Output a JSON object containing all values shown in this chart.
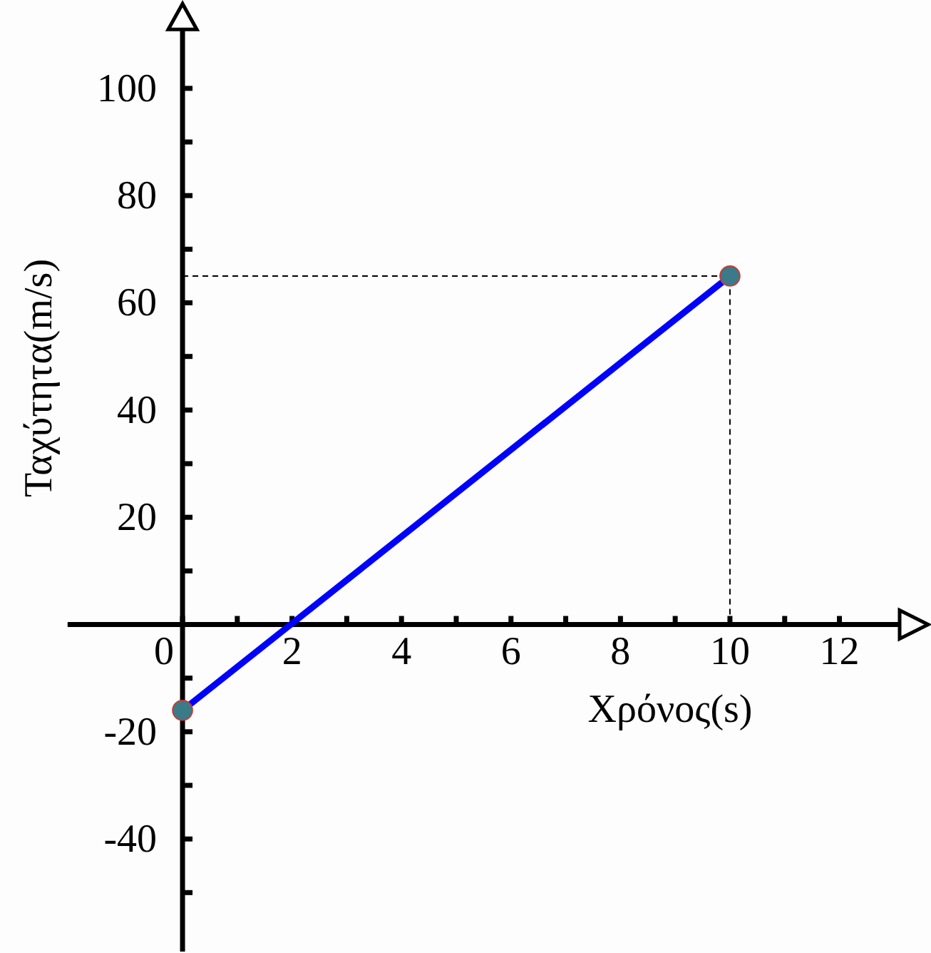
{
  "chart_data": {
    "type": "line",
    "xlabel": "Χρόνος(s)",
    "ylabel": "Ταχύτητα(m/s)",
    "x": [
      0,
      10
    ],
    "values": [
      -16,
      65
    ],
    "color": "#0000ff",
    "marker": "circle",
    "line_style": "solid",
    "xlim": [
      -2.1,
      13.1
    ],
    "ylim": [
      -61,
      111
    ],
    "xticks": [
      0,
      {
        "value": 1,
        "label": null
      },
      2,
      {
        "value": 3,
        "label": null
      },
      4,
      {
        "value": 5,
        "label": null
      },
      6,
      {
        "value": 7,
        "label": null
      },
      8,
      {
        "value": 9,
        "label": null
      },
      10,
      {
        "value": 11,
        "label": null
      },
      12
    ],
    "yticks": [
      {
        "value": -50,
        "label": null
      },
      -40,
      {
        "value": -30,
        "label": null
      },
      -20,
      {
        "value": -10,
        "label": null
      },
      {
        "value": 0,
        "label": null
      },
      {
        "value": 10,
        "label": null
      },
      20,
      {
        "value": 30,
        "label": null
      },
      40,
      {
        "value": 50,
        "label": null
      },
      60,
      {
        "value": 70,
        "label": null
      },
      80,
      {
        "value": 90,
        "label": null
      },
      100
    ],
    "ref_lines": [
      {
        "axis": "y",
        "value": 65,
        "line_style": "dashed"
      },
      {
        "axis": "x",
        "value": 10,
        "line_style": "dashed"
      }
    ]
  }
}
